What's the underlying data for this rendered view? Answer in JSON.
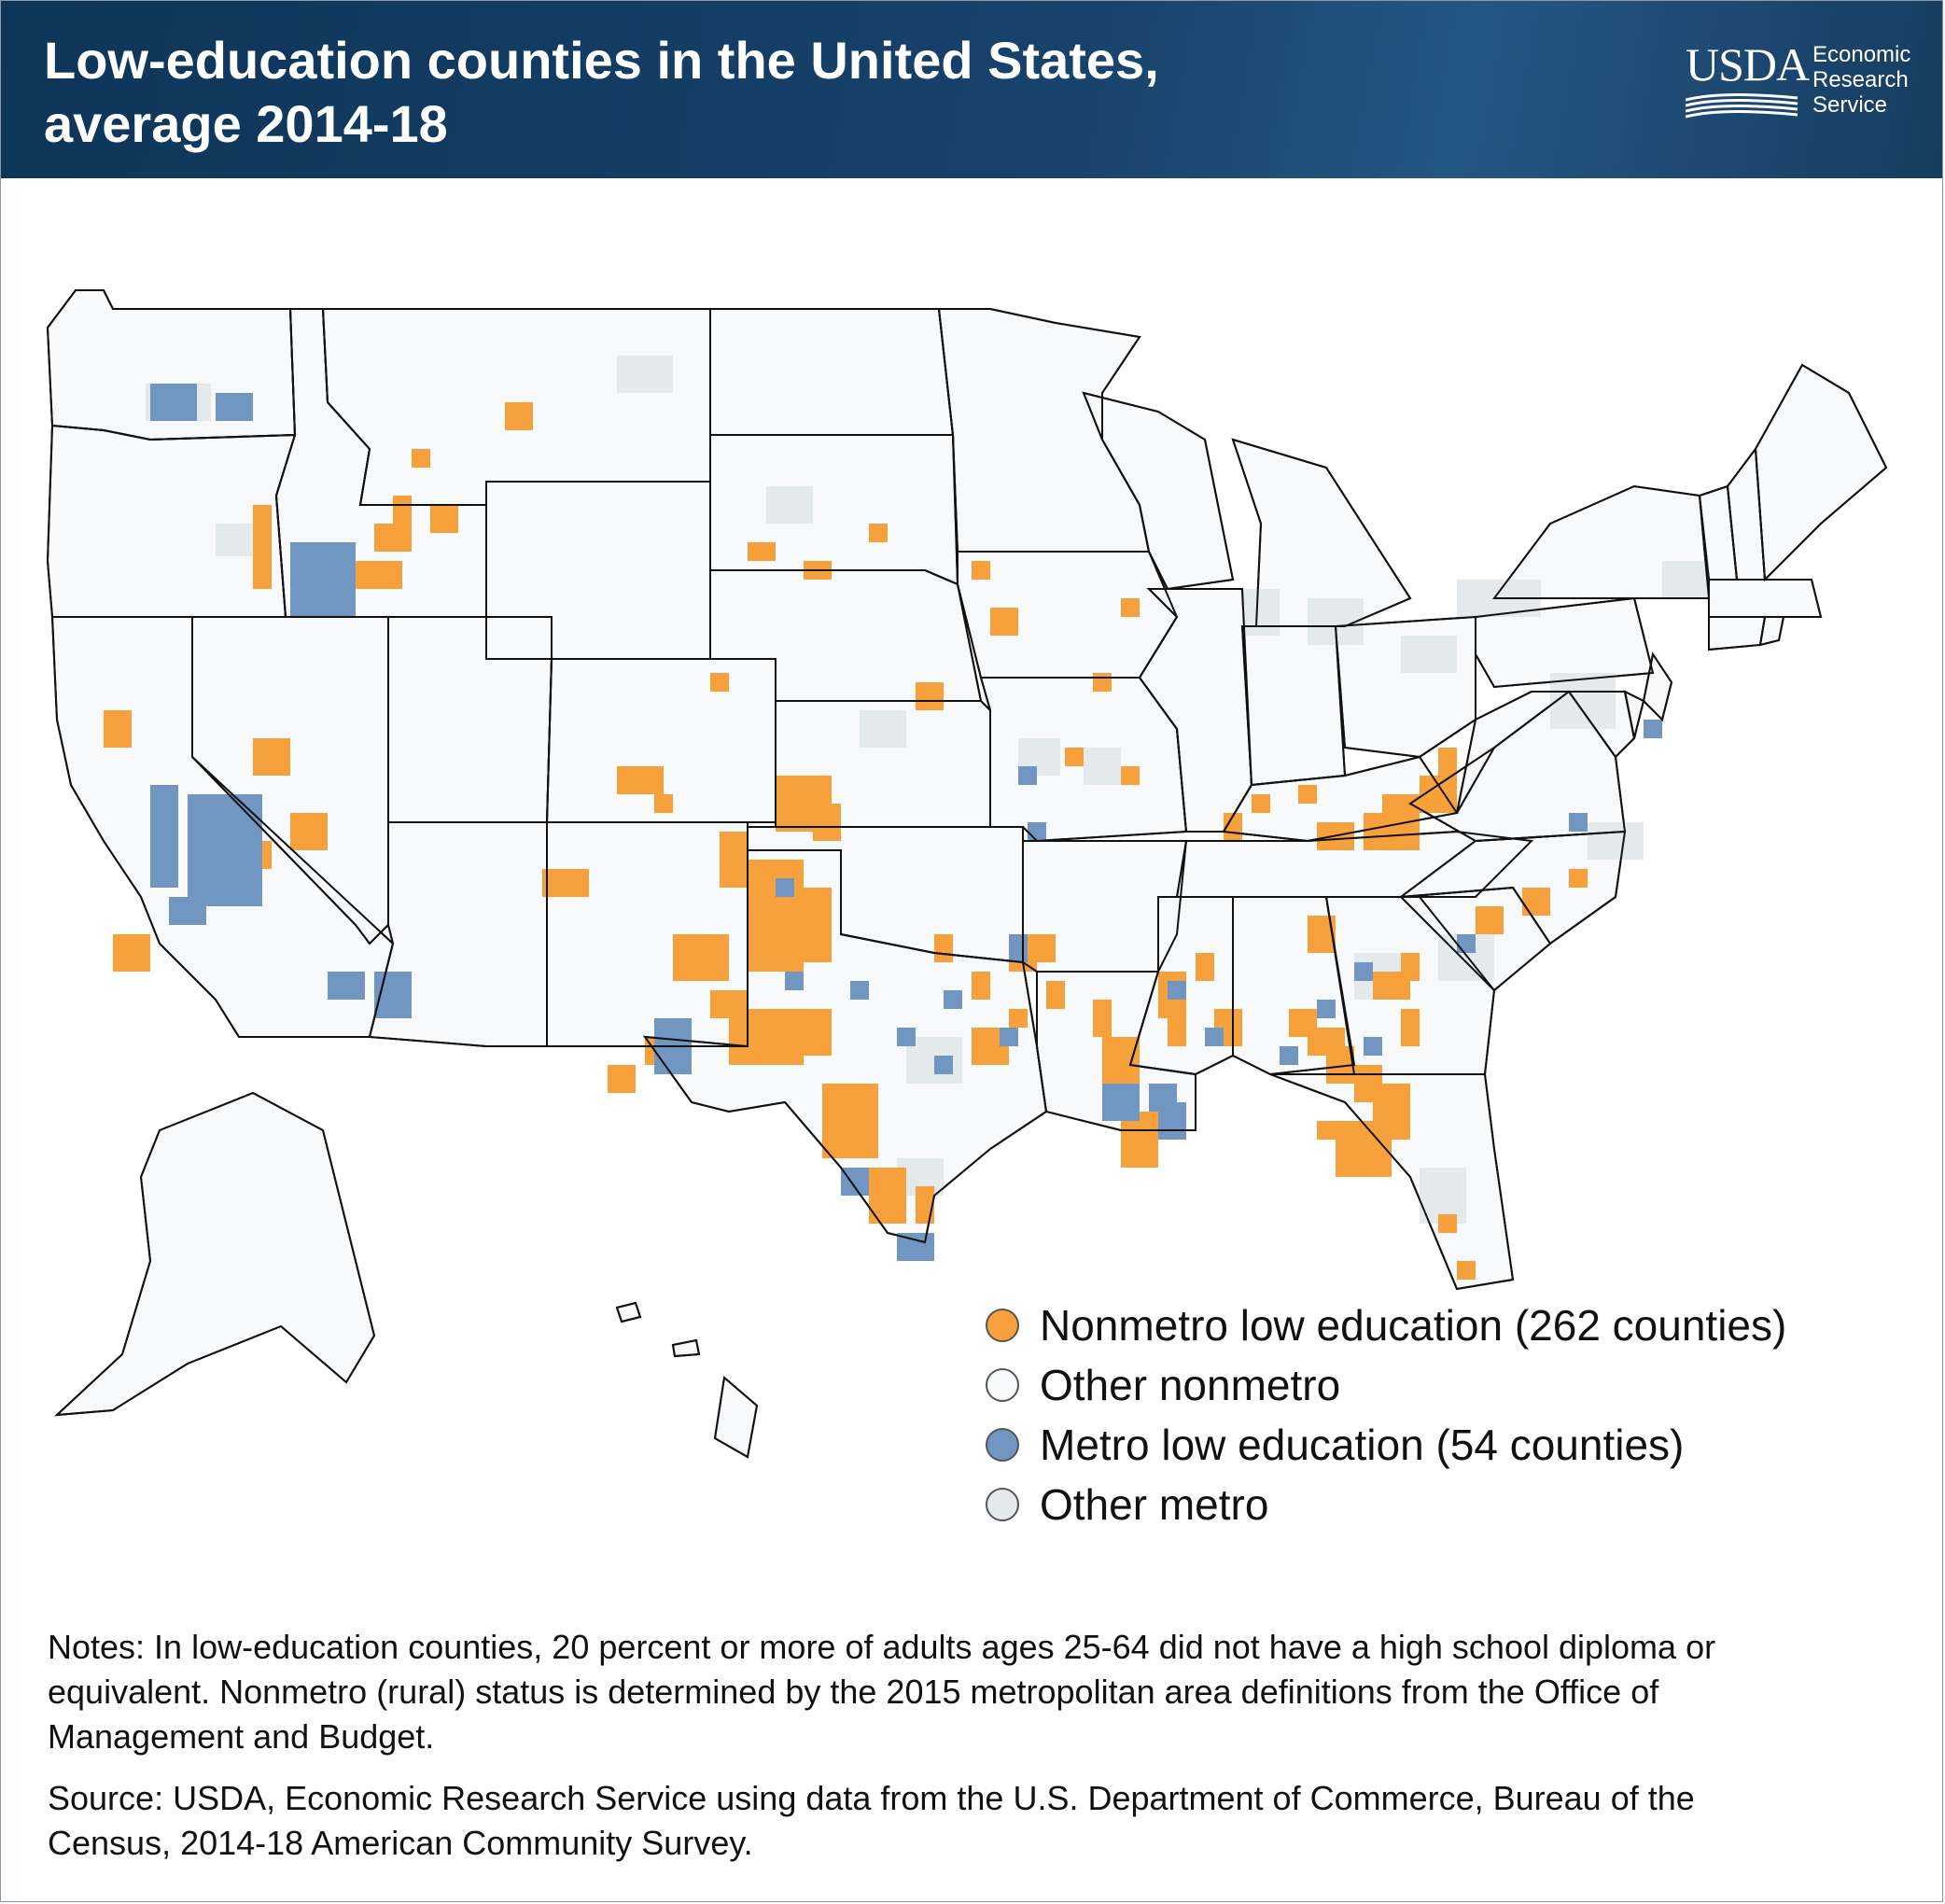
{
  "header": {
    "title_line1": "Low-education counties in the United States,",
    "title_line2": "average 2014-18",
    "logo": {
      "agency": "USDA",
      "line1": "Economic",
      "line2": "Research",
      "line3": "Service"
    }
  },
  "colors": {
    "nonmetro_low_education": "#f7a13c",
    "other_nonmetro": "#f7f9fb",
    "metro_low_education": "#7196c1",
    "other_metro": "#e4e9ec",
    "border": "#111111"
  },
  "legend": [
    {
      "key": "nonmetro_low_education",
      "label": "Nonmetro low education (262 counties)"
    },
    {
      "key": "other_nonmetro",
      "label": "Other nonmetro"
    },
    {
      "key": "metro_low_education",
      "label": "Metro low education (54 counties)"
    },
    {
      "key": "other_metro",
      "label": "Other metro"
    }
  ],
  "chart_data": {
    "type": "choropleth",
    "region": "United States counties",
    "categories": [
      {
        "name": "Nonmetro low education",
        "count": 262
      },
      {
        "name": "Other nonmetro"
      },
      {
        "name": "Metro low education",
        "count": 54
      },
      {
        "name": "Other metro"
      }
    ]
  },
  "notes": "Notes: In low-education counties, 20 percent or more of adults ages 25-64 did not have a high school diploma or equivalent. Nonmetro (rural) status is determined by the 2015 metropolitan area definitions from the Office of Management and Budget.",
  "source": "Source: USDA, Economic Research Service using data from the U.S. Department of Commerce, Bureau of the Census, 2014-18 American Community Survey."
}
